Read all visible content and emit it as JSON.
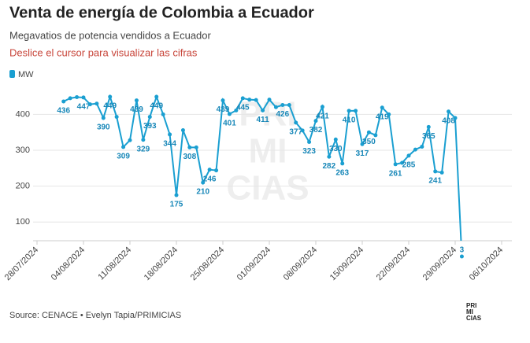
{
  "chart_data": {
    "type": "line",
    "title": "Venta de energía de Colombia a Ecuador",
    "subtitle": "Megavatios de potencia vendidos a Ecuador",
    "note": "Deslice el cursor para visualizar las cifras",
    "source": "Source: CENACE • Evelyn Tapia/PRIMICIAS",
    "watermark": [
      "PRI",
      "MI",
      "CIAS"
    ],
    "x": [
      "01/08/2024",
      "02/08/2024",
      "03/08/2024",
      "04/08/2024",
      "05/08/2024",
      "06/08/2024",
      "07/08/2024",
      "08/08/2024",
      "09/08/2024",
      "10/08/2024",
      "11/08/2024",
      "12/08/2024",
      "13/08/2024",
      "14/08/2024",
      "15/08/2024",
      "16/08/2024",
      "17/08/2024",
      "18/08/2024",
      "19/08/2024",
      "20/08/2024",
      "21/08/2024",
      "22/08/2024",
      "23/08/2024",
      "24/08/2024",
      "25/08/2024",
      "26/08/2024",
      "27/08/2024",
      "28/08/2024",
      "29/08/2024",
      "30/08/2024",
      "31/08/2024",
      "01/09/2024",
      "02/09/2024",
      "03/09/2024",
      "04/09/2024",
      "05/09/2024",
      "06/09/2024",
      "07/09/2024",
      "08/09/2024",
      "09/09/2024",
      "10/09/2024",
      "11/09/2024",
      "12/09/2024",
      "13/09/2024",
      "14/09/2024",
      "15/09/2024",
      "16/09/2024",
      "17/09/2024",
      "18/09/2024",
      "19/09/2024",
      "20/09/2024",
      "21/09/2024",
      "22/09/2024",
      "23/09/2024",
      "24/09/2024",
      "25/09/2024",
      "26/09/2024",
      "27/09/2024",
      "28/09/2024",
      "29/09/2024",
      "30/09/2024"
    ],
    "series": [
      {
        "name": "MW",
        "color": "#1a9fd1",
        "values": [
          436,
          445,
          448,
          447,
          428,
          430,
          390,
          449,
          393,
          309,
          328,
          439,
          329,
          393,
          449,
          400,
          344,
          175,
          356,
          308,
          308,
          210,
          246,
          244,
          439,
          401,
          411,
          445,
          441,
          440,
          411,
          441,
          420,
          426,
          426,
          377,
          355,
          323,
          382,
          421,
          282,
          330,
          263,
          410,
          410,
          317,
          350,
          342,
          419,
          400,
          261,
          265,
          285,
          302,
          310,
          365,
          241,
          238,
          408,
          390,
          3
        ],
        "value_labels": [
          "436",
          null,
          null,
          "447",
          null,
          null,
          "390",
          "449",
          null,
          "309",
          null,
          "439",
          "329",
          "393",
          "449",
          null,
          "344",
          "175",
          null,
          "308",
          null,
          "210",
          "246",
          null,
          "439",
          "401",
          null,
          "445",
          null,
          null,
          "411",
          null,
          null,
          "426",
          null,
          "377",
          null,
          "323",
          "382",
          "421",
          "282",
          "330",
          "263",
          "410",
          null,
          "317",
          "350",
          null,
          "419",
          null,
          "261",
          null,
          "285",
          null,
          null,
          "365",
          "241",
          null,
          "408",
          null,
          "3"
        ]
      }
    ],
    "xlim": [
      "28/07/2024",
      "06/10/2024"
    ],
    "xticks": [
      "28/07/2024",
      "04/08/2024",
      "11/08/2024",
      "18/08/2024",
      "25/08/2024",
      "01/09/2024",
      "08/09/2024",
      "15/09/2024",
      "22/09/2024",
      "29/09/2024",
      "06/10/2024"
    ],
    "ylim": [
      48,
      460
    ],
    "yticks": [
      100,
      200,
      300,
      400
    ],
    "grid": true,
    "legend": "top-left"
  }
}
